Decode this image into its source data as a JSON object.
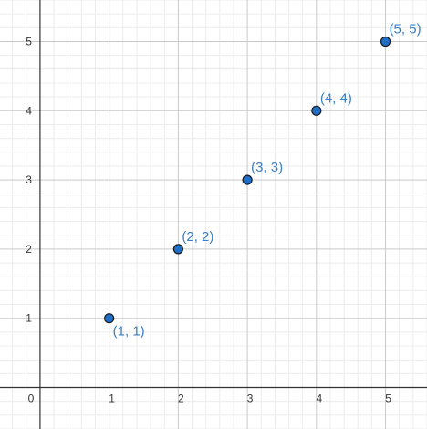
{
  "chart_data": {
    "type": "scatter",
    "title": "",
    "xlabel": "",
    "ylabel": "",
    "xlim": [
      -0.58,
      5.6
    ],
    "ylim": [
      -0.6,
      5.6
    ],
    "grid": true,
    "minor_grid": true,
    "x_ticks": [
      "0",
      "1",
      "2",
      "3",
      "4",
      "5"
    ],
    "y_ticks": [
      "1",
      "2",
      "3",
      "4",
      "5"
    ],
    "series": [
      {
        "color": "#1f6fc6",
        "points": [
          {
            "x": 1,
            "y": 1,
            "label": "(1, 1)",
            "label_pos": "below-right"
          },
          {
            "x": 2,
            "y": 2,
            "label": "(2, 2)",
            "label_pos": "above-right"
          },
          {
            "x": 3,
            "y": 3,
            "label": "(3, 3)",
            "label_pos": "above-right"
          },
          {
            "x": 4,
            "y": 4,
            "label": "(4, 4)",
            "label_pos": "above-right"
          },
          {
            "x": 5,
            "y": 5,
            "label": "(5, 5)",
            "label_pos": "above-right"
          }
        ]
      }
    ],
    "colors": {
      "label": "#3b7fc4",
      "point_stroke": "#1a1a1a",
      "axis": "#333333",
      "major_grid": "#c9c9c9",
      "minor_grid": "#ececec"
    }
  }
}
